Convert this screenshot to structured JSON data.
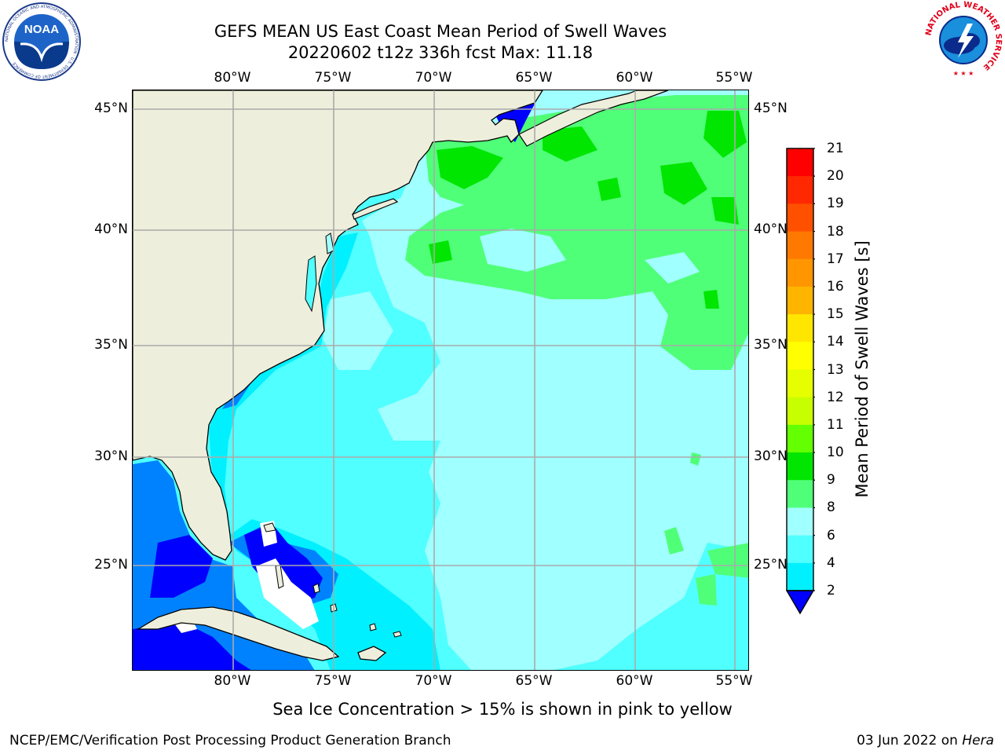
{
  "header": {
    "title_line1": "GEFS MEAN US East Coast Mean Period of Swell Waves",
    "title_line2": "20220602 t12z 336h fcst   Max: 11.18"
  },
  "logos": {
    "left": "noaa-logo",
    "right": "national-weather-service-logo",
    "noaa_text": "NOAA",
    "noaa_ring_text": "NATIONAL OCEANIC AND ATMOSPHERIC ADMINISTRATION · U.S. DEPARTMENT OF COMMERCE",
    "nws_ring_text": "NATIONAL WEATHER SERVICE"
  },
  "map": {
    "lon_ticks": [
      "80°W",
      "75°W",
      "70°W",
      "65°W",
      "60°W",
      "55°W"
    ],
    "lat_ticks": [
      "45°N",
      "40°N",
      "35°N",
      "30°N",
      "25°N"
    ],
    "colors": {
      "land": "#EEEEDC",
      "water_white": "#FFFFFF",
      "grid": "#AAAAAA"
    }
  },
  "colorbar": {
    "label": "Mean Period of Swell Waves [s]",
    "ticks": [
      "21",
      "20",
      "19",
      "18",
      "17",
      "16",
      "15",
      "14",
      "13",
      "12",
      "11",
      "10",
      "9",
      "8",
      "6",
      "4",
      "2"
    ],
    "colors": [
      "#FF0000",
      "#FF2800",
      "#FF5000",
      "#FF7800",
      "#FF9600",
      "#FFB400",
      "#FFE600",
      "#FFFF00",
      "#E6FF00",
      "#C8FF00",
      "#64FF00",
      "#00E600",
      "#50FF78",
      "#A0FFFF",
      "#50FFFF",
      "#00F0FF",
      "#0082FF"
    ],
    "under_color": "#0000FF"
  },
  "footer": {
    "note": "Sea Ice Concentration > 15% is shown in pink to yellow",
    "credit": "NCEP/EMC/Verification Post Processing Product Generation Branch",
    "date_prefix": "03 Jun 2022 on ",
    "machine": "Hera"
  }
}
